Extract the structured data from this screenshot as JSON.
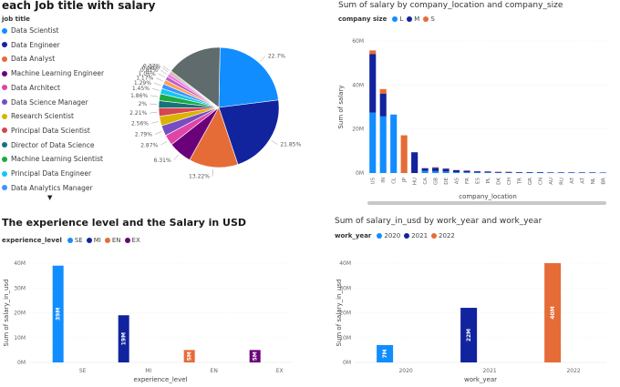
{
  "colors": {
    "blue": "#118DFF",
    "navy": "#12239E",
    "orange": "#E66C37",
    "purple": "#6B007B",
    "axis": "#999999",
    "grid": "#e6e6e6"
  },
  "panel1": {
    "title": "each Job title with salary",
    "legend_title": "job title",
    "more_icon": "triangle-down-icon",
    "legend_items": [
      {
        "label": "Data Scientist",
        "color": "#118DFF"
      },
      {
        "label": "Data Engineer",
        "color": "#12239E"
      },
      {
        "label": "Data Analyst",
        "color": "#E66C37"
      },
      {
        "label": "Machine Learning Engineer",
        "color": "#6B007B"
      },
      {
        "label": "Data Architect",
        "color": "#E044A7"
      },
      {
        "label": "Data Science Manager",
        "color": "#744EC2"
      },
      {
        "label": "Research Scientist",
        "color": "#D9B300"
      },
      {
        "label": "Principal Data Scientist",
        "color": "#D64550"
      },
      {
        "label": "Director of Data Science",
        "color": "#197278"
      },
      {
        "label": "Machine Learning Scientist",
        "color": "#1AAB40"
      },
      {
        "label": "Principal Data Engineer",
        "color": "#15C6F4"
      },
      {
        "label": "Data Analytics Manager",
        "color": "#4092FF"
      }
    ]
  },
  "chart_data": [
    {
      "type": "pie",
      "title": "each Job title with salary",
      "legend_title": "job title",
      "slices": [
        {
          "label": "Data Scientist",
          "value": 22.7,
          "text": "22.7%",
          "color": "#118DFF"
        },
        {
          "label": "Data Engineer",
          "value": 21.85,
          "text": "21.85%",
          "color": "#12239E"
        },
        {
          "label": "Data Analyst",
          "value": 13.22,
          "text": "13.22%",
          "color": "#E66C37"
        },
        {
          "label": "Machine Learning Engineer",
          "value": 6.31,
          "text": "6.31%",
          "color": "#6B007B"
        },
        {
          "label": "Data Architect",
          "value": 2.87,
          "text": "2.87%",
          "color": "#E044A7"
        },
        {
          "label": "Data Science Manager",
          "value": 2.79,
          "text": "2.79%",
          "color": "#744EC2"
        },
        {
          "label": "Research Scientist",
          "value": 2.56,
          "text": "2.56%",
          "color": "#D9B300"
        },
        {
          "label": "Principal Data Scientist",
          "value": 2.21,
          "text": "2.21%",
          "color": "#D64550"
        },
        {
          "label": "Director of Data Science",
          "value": 2.0,
          "text": "2%",
          "color": "#197278"
        },
        {
          "label": "Machine Learning Scientist",
          "value": 1.86,
          "text": "1.86%",
          "color": "#1AAB40"
        },
        {
          "label": "Principal Data Engineer",
          "value": 1.45,
          "text": "1.45%",
          "color": "#15C6F4"
        },
        {
          "label": "Data Analytics Manager",
          "value": 1.29,
          "text": "1.29%",
          "color": "#4092FF"
        },
        {
          "label": "",
          "value": 1.17,
          "text": "1.17%",
          "color": "#FFA058"
        },
        {
          "label": "",
          "value": 1.06,
          "text": "1.06%",
          "color": "#BE5DC9"
        },
        {
          "label": "",
          "value": 0.81,
          "text": "0.81%",
          "color": "#F472D0"
        },
        {
          "label": "",
          "value": 0.56,
          "text": "0.56%",
          "color": "#B5A1FF"
        },
        {
          "label": "",
          "value": 0.37,
          "text": "0.37%",
          "color": "#C4A200"
        },
        {
          "label": "",
          "value": 14.92,
          "text": "",
          "color": "#5F6B6D"
        }
      ]
    },
    {
      "type": "bar",
      "stacked": true,
      "title": "Sum of salary by company_location and company_size",
      "legend_title": "company size",
      "xlabel": "company_location",
      "ylabel": "Sum of salary",
      "yticks": [
        "0M",
        "20M",
        "40M",
        "60M"
      ],
      "ylim": [
        0,
        70
      ],
      "categories": [
        "US",
        "IN",
        "CL",
        "JP",
        "HU",
        "CA",
        "GB",
        "DE",
        "AS",
        "FR",
        "ES",
        "PL",
        "DK",
        "CH",
        "TR",
        "GR",
        "CN",
        "AU",
        "RU",
        "AT",
        "AT",
        "NL",
        "BR"
      ],
      "series": [
        {
          "name": "L",
          "color": "#118DFF",
          "values": [
            32,
            30,
            31,
            0,
            0,
            1.2,
            1.0,
            0.8,
            0.5,
            0.4,
            0.3,
            0.3,
            0.2,
            0.2,
            0.2,
            0.2,
            0.2,
            0.2,
            0.2,
            0.2,
            0.2,
            0.2,
            0.1
          ]
        },
        {
          "name": "M",
          "color": "#12239E",
          "values": [
            31,
            12,
            0,
            0,
            11,
            1.3,
            1.8,
            1.5,
            1.0,
            0.8,
            0.6,
            0.5,
            0.4,
            0.4,
            0.3,
            0.3,
            0.3,
            0.2,
            0.2,
            0.2,
            0.2,
            0.2,
            0.2
          ]
        },
        {
          "name": "S",
          "color": "#E66C37",
          "values": [
            2,
            2.5,
            0,
            20,
            0,
            0.2,
            0.3,
            0.2,
            0.1,
            0.1,
            0.1,
            0.1,
            0.1,
            0.1,
            0,
            0,
            0,
            0,
            0,
            0,
            0,
            0,
            0
          ]
        }
      ]
    },
    {
      "type": "bar",
      "title": "The experience level and the Salary in USD",
      "legend_title": "experience_level",
      "xlabel": "experience_level",
      "ylabel": "Sum of salary_in_usd",
      "yticks": [
        "0M",
        "10M",
        "20M",
        "30M",
        "40M"
      ],
      "ylim": [
        0,
        40
      ],
      "categories": [
        "SE",
        "MI",
        "EN",
        "EX"
      ],
      "series": [
        {
          "name": "SE",
          "color": "#118DFF",
          "values": [
            39,
            null,
            null,
            null
          ]
        },
        {
          "name": "MI",
          "color": "#12239E",
          "values": [
            null,
            19,
            null,
            null
          ]
        },
        {
          "name": "EN",
          "color": "#E66C37",
          "values": [
            null,
            null,
            5,
            null
          ]
        },
        {
          "name": "EX",
          "color": "#6B007B",
          "values": [
            null,
            null,
            null,
            5
          ]
        }
      ],
      "data_labels": [
        "39M",
        "19M",
        "5M",
        "5M"
      ]
    },
    {
      "type": "bar",
      "title": "Sum of salary_in_usd by work_year and work_year",
      "legend_title": "work_year",
      "xlabel": "work_year",
      "ylabel": "Sum of salary_in_usd",
      "yticks": [
        "0M",
        "10M",
        "20M",
        "30M",
        "40M"
      ],
      "ylim": [
        0,
        40
      ],
      "categories": [
        "2020",
        "2021",
        "2022"
      ],
      "series": [
        {
          "name": "2020",
          "color": "#118DFF",
          "values": [
            7,
            null,
            null
          ]
        },
        {
          "name": "2021",
          "color": "#12239E",
          "values": [
            null,
            22,
            null
          ]
        },
        {
          "name": "2022",
          "color": "#E66C37",
          "values": [
            null,
            null,
            40
          ]
        }
      ],
      "data_labels": [
        "7M",
        "22M",
        "40M"
      ]
    }
  ]
}
